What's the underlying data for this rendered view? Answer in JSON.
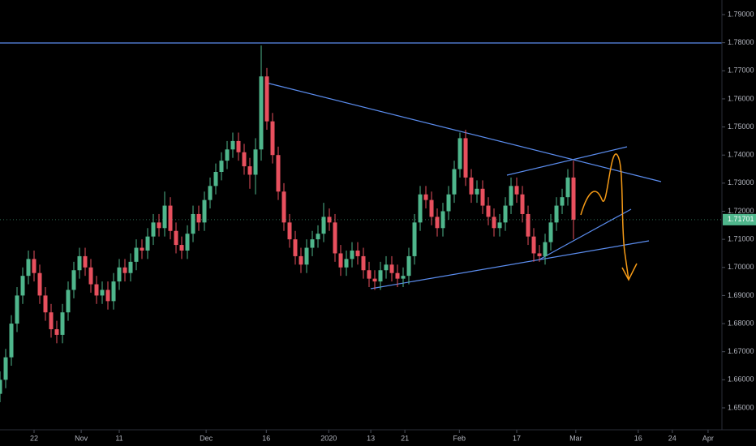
{
  "chart_data": {
    "type": "candlestick",
    "up_color": "#4fb68c",
    "down_color": "#e8505e",
    "x": [
      0,
      1,
      2,
      3,
      4,
      5,
      6,
      7,
      8,
      9,
      10,
      11,
      12,
      13,
      14,
      15,
      16,
      17,
      18,
      19,
      20,
      21,
      22,
      23,
      24,
      25,
      26,
      27,
      28,
      29,
      30,
      31,
      32,
      33,
      34,
      35,
      36,
      37,
      38,
      39,
      40,
      41,
      42,
      43,
      44,
      45,
      46,
      47,
      48,
      49,
      50,
      51,
      52,
      53,
      54,
      55,
      56,
      57,
      58,
      59,
      60,
      61,
      62,
      63,
      64,
      65,
      66,
      67,
      68,
      69,
      70,
      71,
      72,
      73,
      74,
      75,
      76,
      77,
      78,
      79,
      80,
      81,
      82,
      83,
      84,
      85,
      86,
      87,
      88,
      89,
      90,
      91,
      92,
      93,
      94,
      95,
      96,
      97,
      98,
      99,
      100,
      101
    ],
    "candles": [
      [
        1.655,
        1.663,
        1.652,
        1.66
      ],
      [
        1.66,
        1.671,
        1.657,
        1.668
      ],
      [
        1.668,
        1.683,
        1.665,
        1.68
      ],
      [
        1.68,
        1.693,
        1.677,
        1.69
      ],
      [
        1.69,
        1.7,
        1.687,
        1.697
      ],
      [
        1.697,
        1.706,
        1.694,
        1.703
      ],
      [
        1.703,
        1.706,
        1.695,
        1.698
      ],
      [
        1.698,
        1.701,
        1.687,
        1.69
      ],
      [
        1.69,
        1.693,
        1.681,
        1.684
      ],
      [
        1.684,
        1.687,
        1.675,
        1.678
      ],
      [
        1.678,
        1.681,
        1.673,
        1.676
      ],
      [
        1.676,
        1.687,
        1.673,
        1.684
      ],
      [
        1.684,
        1.695,
        1.681,
        1.692
      ],
      [
        1.692,
        1.702,
        1.689,
        1.699
      ],
      [
        1.699,
        1.707,
        1.696,
        1.704
      ],
      [
        1.704,
        1.707,
        1.697,
        1.7
      ],
      [
        1.7,
        1.703,
        1.691,
        1.694
      ],
      [
        1.694,
        1.697,
        1.687,
        1.69
      ],
      [
        1.69,
        1.695,
        1.687,
        1.692
      ],
      [
        1.692,
        1.695,
        1.685,
        1.688
      ],
      [
        1.688,
        1.698,
        1.685,
        1.695
      ],
      [
        1.695,
        1.703,
        1.692,
        1.7
      ],
      [
        1.7,
        1.703,
        1.695,
        1.698
      ],
      [
        1.698,
        1.705,
        1.695,
        1.702
      ],
      [
        1.702,
        1.71,
        1.699,
        1.707
      ],
      [
        1.707,
        1.71,
        1.703,
        1.706
      ],
      [
        1.706,
        1.714,
        1.703,
        1.711
      ],
      [
        1.711,
        1.719,
        1.708,
        1.716
      ],
      [
        1.716,
        1.719,
        1.711,
        1.714
      ],
      [
        1.714,
        1.727,
        1.711,
        1.722
      ],
      [
        1.722,
        1.725,
        1.71,
        1.713
      ],
      [
        1.713,
        1.716,
        1.705,
        1.708
      ],
      [
        1.708,
        1.711,
        1.703,
        1.706
      ],
      [
        1.706,
        1.715,
        1.703,
        1.712
      ],
      [
        1.712,
        1.722,
        1.709,
        1.719
      ],
      [
        1.719,
        1.722,
        1.713,
        1.716
      ],
      [
        1.716,
        1.727,
        1.713,
        1.724
      ],
      [
        1.724,
        1.732,
        1.721,
        1.729
      ],
      [
        1.729,
        1.737,
        1.726,
        1.734
      ],
      [
        1.734,
        1.741,
        1.731,
        1.738
      ],
      [
        1.738,
        1.745,
        1.735,
        1.742
      ],
      [
        1.742,
        1.748,
        1.739,
        1.745
      ],
      [
        1.745,
        1.748,
        1.738,
        1.741
      ],
      [
        1.741,
        1.744,
        1.733,
        1.736
      ],
      [
        1.736,
        1.739,
        1.728,
        1.733
      ],
      [
        1.733,
        1.746,
        1.726,
        1.742
      ],
      [
        1.742,
        1.779,
        1.738,
        1.768
      ],
      [
        1.768,
        1.771,
        1.749,
        1.752
      ],
      [
        1.752,
        1.755,
        1.737,
        1.74
      ],
      [
        1.74,
        1.743,
        1.724,
        1.727
      ],
      [
        1.727,
        1.73,
        1.713,
        1.716
      ],
      [
        1.716,
        1.719,
        1.707,
        1.71
      ],
      [
        1.71,
        1.713,
        1.701,
        1.704
      ],
      [
        1.704,
        1.707,
        1.698,
        1.701
      ],
      [
        1.701,
        1.71,
        1.698,
        1.707
      ],
      [
        1.707,
        1.713,
        1.704,
        1.71
      ],
      [
        1.71,
        1.715,
        1.707,
        1.712
      ],
      [
        1.712,
        1.723,
        1.709,
        1.718
      ],
      [
        1.718,
        1.721,
        1.713,
        1.716
      ],
      [
        1.716,
        1.719,
        1.702,
        1.705
      ],
      [
        1.705,
        1.708,
        1.697,
        1.7
      ],
      [
        1.7,
        1.706,
        1.697,
        1.703
      ],
      [
        1.703,
        1.709,
        1.7,
        1.706
      ],
      [
        1.706,
        1.709,
        1.701,
        1.704
      ],
      [
        1.704,
        1.707,
        1.696,
        1.699
      ],
      [
        1.699,
        1.702,
        1.693,
        1.696
      ],
      [
        1.696,
        1.699,
        1.692,
        1.695
      ],
      [
        1.695,
        1.702,
        1.692,
        1.699
      ],
      [
        1.699,
        1.704,
        1.696,
        1.701
      ],
      [
        1.701,
        1.704,
        1.695,
        1.698
      ],
      [
        1.698,
        1.701,
        1.693,
        1.696
      ],
      [
        1.696,
        1.7,
        1.693,
        1.697
      ],
      [
        1.697,
        1.707,
        1.694,
        1.704
      ],
      [
        1.704,
        1.719,
        1.701,
        1.716
      ],
      [
        1.716,
        1.729,
        1.713,
        1.726
      ],
      [
        1.726,
        1.729,
        1.721,
        1.724
      ],
      [
        1.724,
        1.727,
        1.715,
        1.718
      ],
      [
        1.718,
        1.721,
        1.711,
        1.714
      ],
      [
        1.714,
        1.723,
        1.711,
        1.72
      ],
      [
        1.72,
        1.729,
        1.717,
        1.726
      ],
      [
        1.726,
        1.738,
        1.723,
        1.735
      ],
      [
        1.735,
        1.748,
        1.732,
        1.746
      ],
      [
        1.746,
        1.749,
        1.729,
        1.732
      ],
      [
        1.732,
        1.735,
        1.723,
        1.726
      ],
      [
        1.726,
        1.731,
        1.723,
        1.728
      ],
      [
        1.728,
        1.731,
        1.719,
        1.722
      ],
      [
        1.722,
        1.725,
        1.715,
        1.718
      ],
      [
        1.718,
        1.721,
        1.711,
        1.714
      ],
      [
        1.714,
        1.719,
        1.711,
        1.716
      ],
      [
        1.716,
        1.725,
        1.713,
        1.722
      ],
      [
        1.722,
        1.732,
        1.719,
        1.729
      ],
      [
        1.729,
        1.732,
        1.723,
        1.726
      ],
      [
        1.726,
        1.729,
        1.716,
        1.719
      ],
      [
        1.719,
        1.722,
        1.708,
        1.711
      ],
      [
        1.711,
        1.714,
        1.702,
        1.705
      ],
      [
        1.705,
        1.708,
        1.702,
        1.704
      ],
      [
        1.704,
        1.712,
        1.701,
        1.709
      ],
      [
        1.709,
        1.719,
        1.706,
        1.716
      ],
      [
        1.716,
        1.725,
        1.713,
        1.722
      ],
      [
        1.722,
        1.728,
        1.719,
        1.725
      ],
      [
        1.725,
        1.735,
        1.722,
        1.732
      ],
      [
        1.732,
        1.738,
        1.71,
        1.717
      ]
    ],
    "xlim": [
      0,
      127.14
    ],
    "xticks": [
      {
        "value": 6,
        "label": "22"
      },
      {
        "value": 14.3,
        "label": "Nov"
      },
      {
        "value": 21,
        "label": "11"
      },
      {
        "value": 36.3,
        "label": "Dec"
      },
      {
        "value": 46.9,
        "label": "16"
      },
      {
        "value": 57.9,
        "label": "2020"
      },
      {
        "value": 65.3,
        "label": "13"
      },
      {
        "value": 71.3,
        "label": "21"
      },
      {
        "value": 80.9,
        "label": "Feb"
      },
      {
        "value": 91,
        "label": "17"
      },
      {
        "value": 101.4,
        "label": "Mar"
      },
      {
        "value": 112.4,
        "label": "16"
      },
      {
        "value": 118.4,
        "label": "24"
      },
      {
        "value": 124.7,
        "label": "Apr"
      }
    ],
    "ylim": [
      1.6422,
      1.7952
    ],
    "yticks": [
      {
        "value": 1.79,
        "label": "1.79000"
      },
      {
        "value": 1.78,
        "label": "1.78000"
      },
      {
        "value": 1.77,
        "label": "1.77000"
      },
      {
        "value": 1.76,
        "label": "1.76000"
      },
      {
        "value": 1.75,
        "label": "1.75000"
      },
      {
        "value": 1.74,
        "label": "1.74000"
      },
      {
        "value": 1.73,
        "label": "1.73000"
      },
      {
        "value": 1.72,
        "label": "1.72000"
      },
      {
        "value": 1.71,
        "label": "1.71000"
      },
      {
        "value": 1.7,
        "label": "1.70000"
      },
      {
        "value": 1.69,
        "label": "1.69000"
      },
      {
        "value": 1.68,
        "label": "1.68000"
      },
      {
        "value": 1.67,
        "label": "1.67000"
      },
      {
        "value": 1.66,
        "label": "1.66000"
      },
      {
        "value": 1.65,
        "label": "1.65000"
      }
    ],
    "last_price": {
      "value": 1.71701,
      "label": "1.71701"
    },
    "grid": false
  }
}
